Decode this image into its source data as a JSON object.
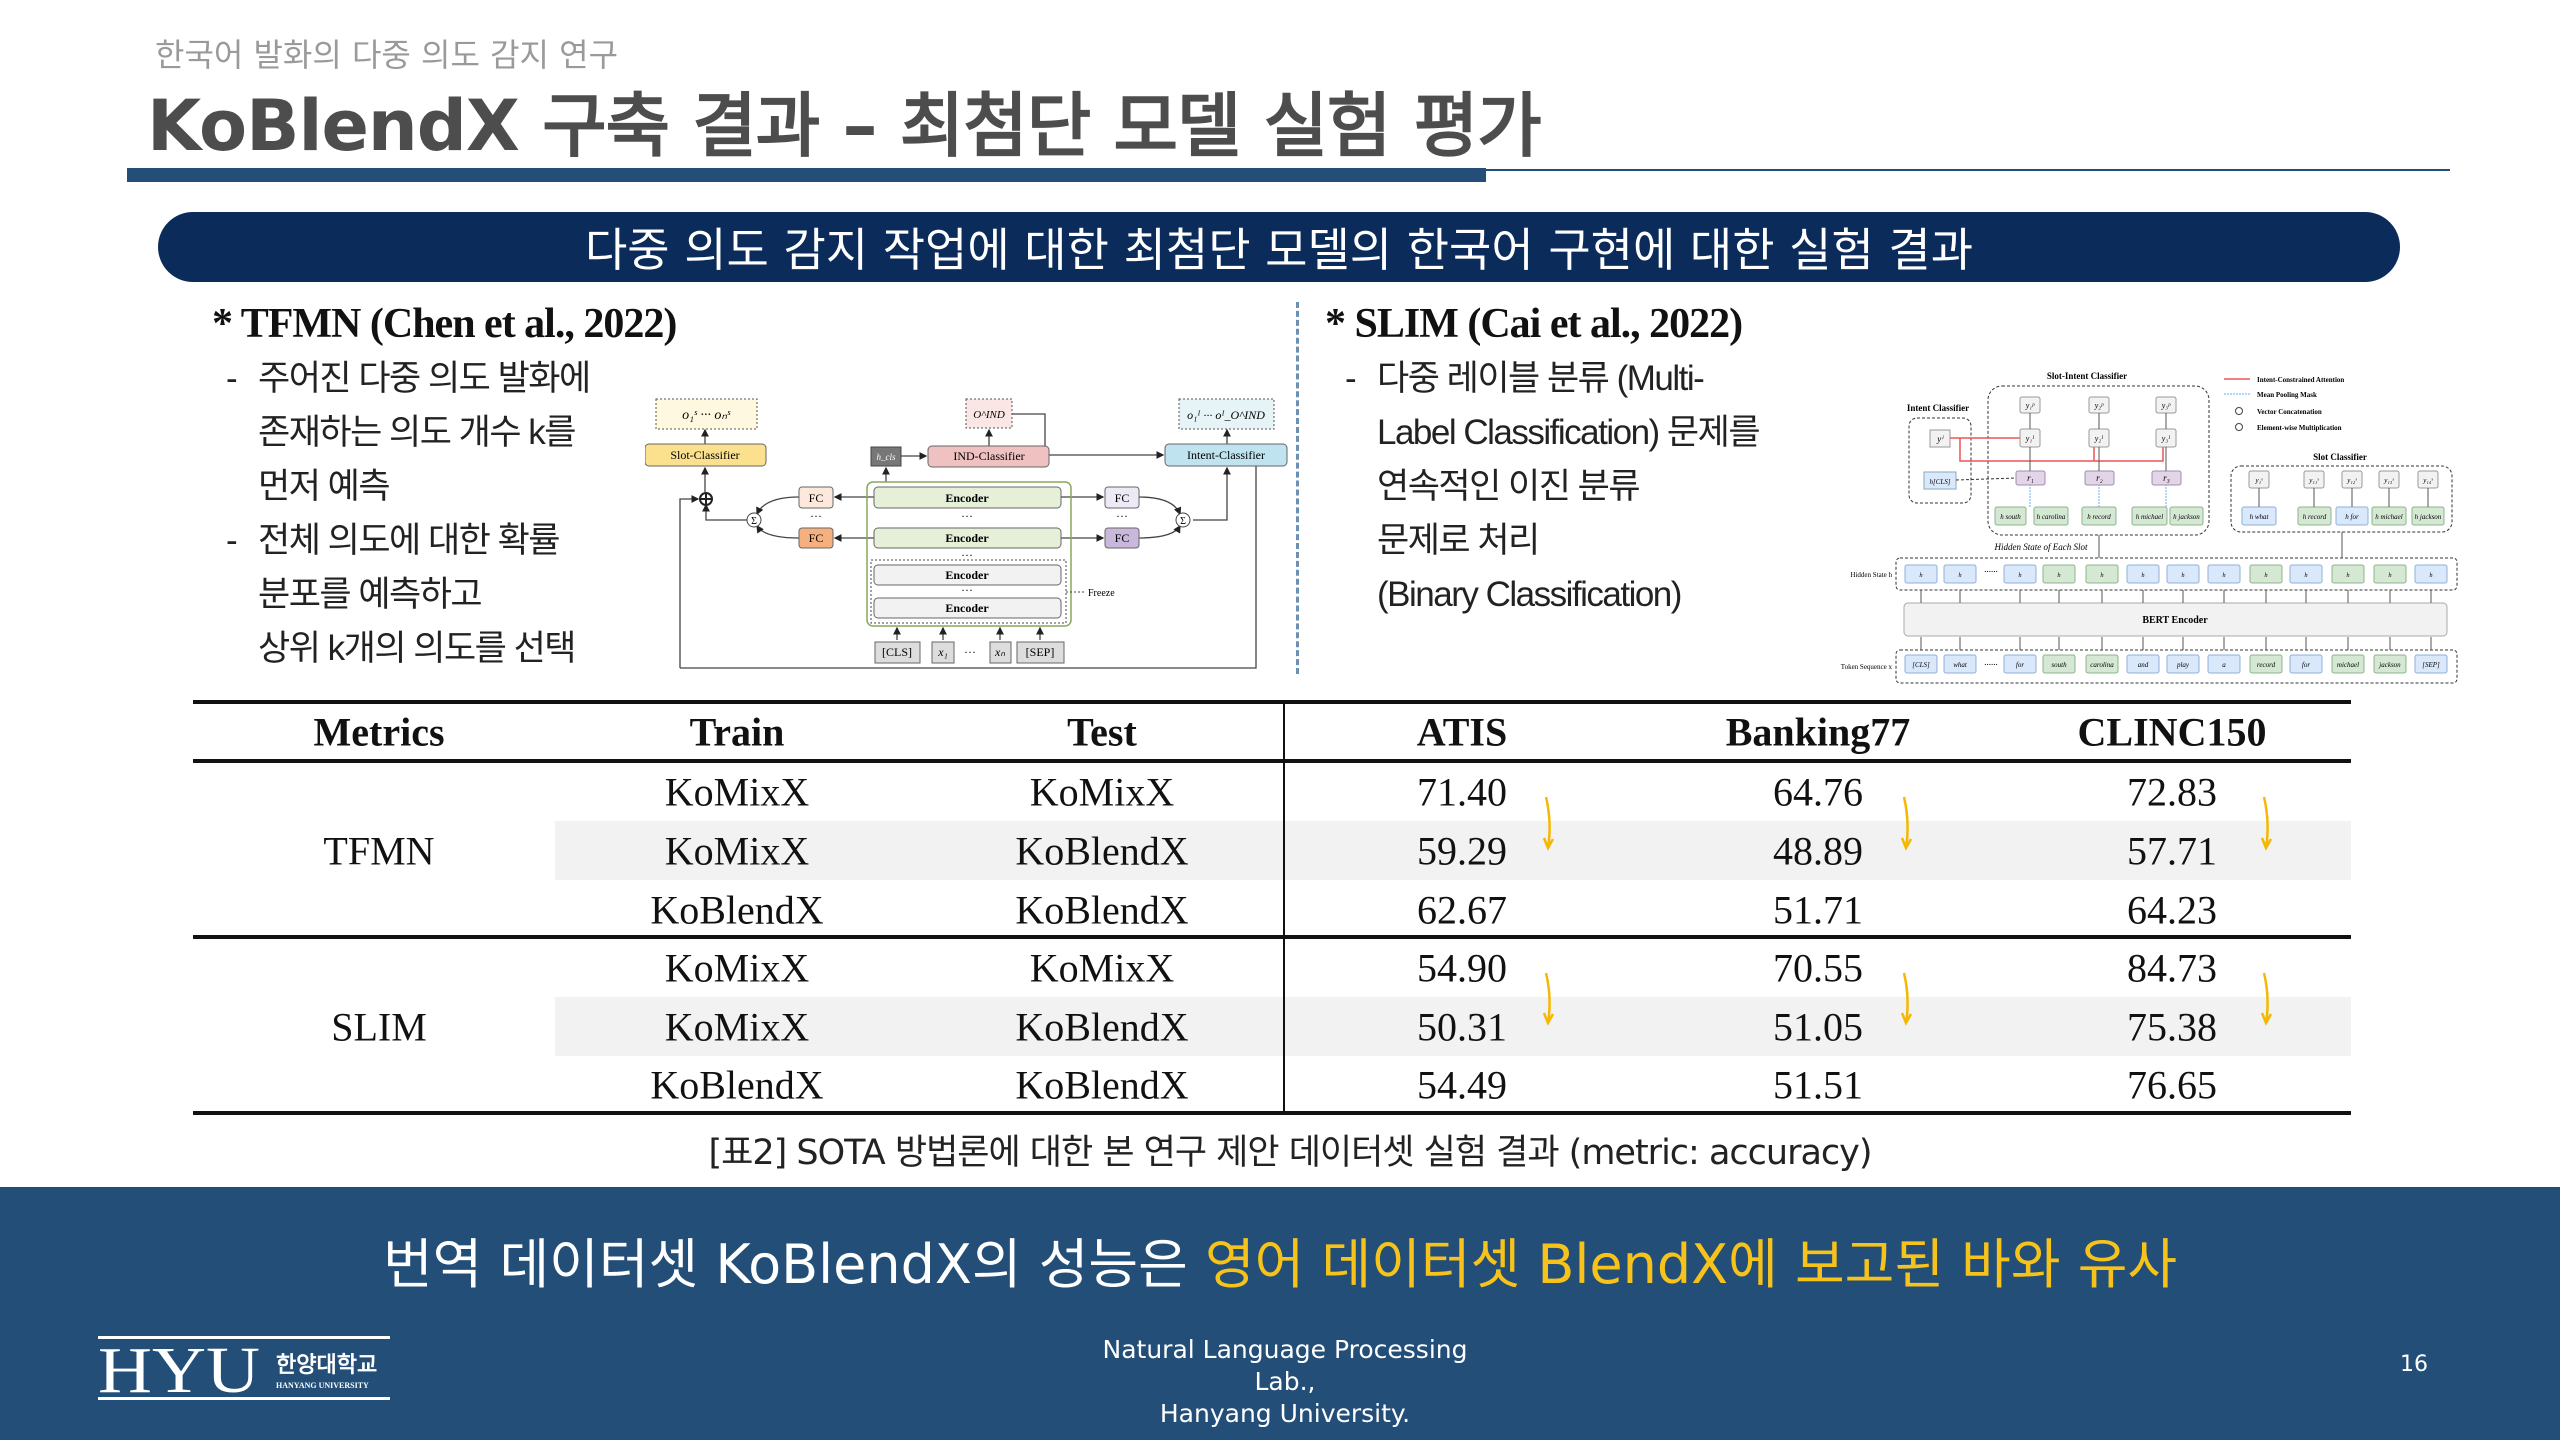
{
  "header": {
    "subtitle": "한국어 발화의 다중 의도 감지 연구",
    "title": "KoBlendX 구축 결과 – 최첨단 모델 실험 평가"
  },
  "banner": "다중 의도 감지 작업에 대한 최첨단 모델의 한국어 구현에 대한 실험 결과",
  "tfmn": {
    "heading": "* TFMN (Chen et al., 2022)",
    "bullets": [
      [
        "주어진 다중 의도 발화에",
        "존재하는 의도 개수 k를",
        "먼저 예측"
      ],
      [
        "전체 의도에 대한 확률",
        "분포를 예측하고",
        "상위 k개의 의도를 선택"
      ]
    ],
    "diagram": {
      "slot_out": "o₁ˢ ··· oₙˢ",
      "slot_classifier": "Slot-Classifier",
      "hcls": "h_cls",
      "ind_classifier": "IND-Classifier",
      "ind_out": "O^IND",
      "intent_classifier": "Intent-Classifier",
      "intent_out": "o₁ᴵ ··· oᴵ_O^IND",
      "encoder": "Encoder",
      "fc": "FC",
      "freeze": "Freeze",
      "dots": "···",
      "inputs": [
        "[CLS]",
        "x₁",
        "···",
        "xₙ",
        "[SEP]"
      ],
      "sum": "Σ"
    }
  },
  "slim": {
    "heading": "* SLIM (Cai et al., 2022)",
    "bullets": [
      [
        "다중 레이블 분류 (Multi-",
        "Label Classification) 문제를",
        "연속적인 이진 분류",
        "문제로 처리",
        "(Binary Classification)"
      ]
    ],
    "diagram": {
      "slot_intent_classifier": "Slot-Intent Classifier",
      "intent_classifier": "Intent Classifier",
      "slot_classifier": "Slot Classifier",
      "legend": [
        "Intent-Constrained Attention",
        "Mean Pooling Mask",
        "Vector Concatenation",
        "Element-wise Multiplication"
      ],
      "yi": "yⁱ",
      "hcls": "h[CLS]",
      "yp": [
        "y₁ᵖ",
        "y₂ᵖ",
        "y₃ᵖ"
      ],
      "yI": [
        "y₁ᴵ",
        "y₂ᴵ",
        "y₃ᴵ"
      ],
      "r": [
        "r₁",
        "r₂",
        "r₃"
      ],
      "slot_h": [
        "h south",
        "h carolina",
        "h record",
        "h michael",
        "h jackson"
      ],
      "each_slot": "Hidden State of Each Slot",
      "slot_cls_y": [
        "y₁ˢ",
        "y₁₁ˢ",
        "y₁₂ˢ",
        "y₁₃ˢ",
        "y₁₄ˢ"
      ],
      "slot_cls_h": [
        "h what",
        "h record",
        "h for",
        "h michael",
        "h jackson"
      ],
      "hidden_label": "Hidden State h",
      "token_label": "Token Sequence x",
      "bert": "BERT Encoder",
      "tokens": [
        [
          "[CLS]",
          "b"
        ],
        [
          "what",
          "b"
        ],
        [
          "......",
          "n"
        ],
        [
          "for",
          "b"
        ],
        [
          "south",
          "g"
        ],
        [
          "carolina",
          "g"
        ],
        [
          "and",
          "b"
        ],
        [
          "play",
          "b"
        ],
        [
          "a",
          "b"
        ],
        [
          "record",
          "g"
        ],
        [
          "for",
          "b"
        ],
        [
          "michael",
          "g"
        ],
        [
          "jackson",
          "g"
        ],
        [
          "[SEP]",
          "b"
        ]
      ]
    }
  },
  "table": {
    "headers": [
      "Metrics",
      "Train",
      "Test",
      "ATIS",
      "Banking77",
      "CLINC150"
    ],
    "groups": [
      {
        "model": "TFMN",
        "rows": [
          [
            "KoMixX",
            "KoMixX",
            "71.40",
            "64.76",
            "72.83"
          ],
          [
            "KoMixX",
            "KoBlendX",
            "59.29",
            "48.89",
            "57.71"
          ],
          [
            "KoBlendX",
            "KoBlendX",
            "62.67",
            "51.71",
            "64.23"
          ]
        ]
      },
      {
        "model": "SLIM",
        "rows": [
          [
            "KoMixX",
            "KoMixX",
            "54.90",
            "70.55",
            "84.73"
          ],
          [
            "KoMixX",
            "KoBlendX",
            "50.31",
            "51.05",
            "75.38"
          ],
          [
            "KoBlendX",
            "KoBlendX",
            "54.49",
            "51.51",
            "76.65"
          ]
        ]
      }
    ],
    "caption": "[표2] SOTA 방법론에 대한 본 연구 제안 데이터셋 실험 결과 (metric: accuracy)",
    "arrow_color": "#f5b800"
  },
  "footer": {
    "conclusion_plain": "번역 데이터셋 KoBlendX의 성능은 ",
    "conclusion_highlight": "영어 데이터셋 BlendX에 보고된 바와 유사",
    "highlight_color": "#f7c31a",
    "lab_line1": "Natural Language Processing Lab.,",
    "lab_line2": "Hanyang University.",
    "page": "16",
    "logo": {
      "mark": "HYU",
      "korean": "한양대학교",
      "english": "HANYANG UNIVERSITY"
    }
  }
}
